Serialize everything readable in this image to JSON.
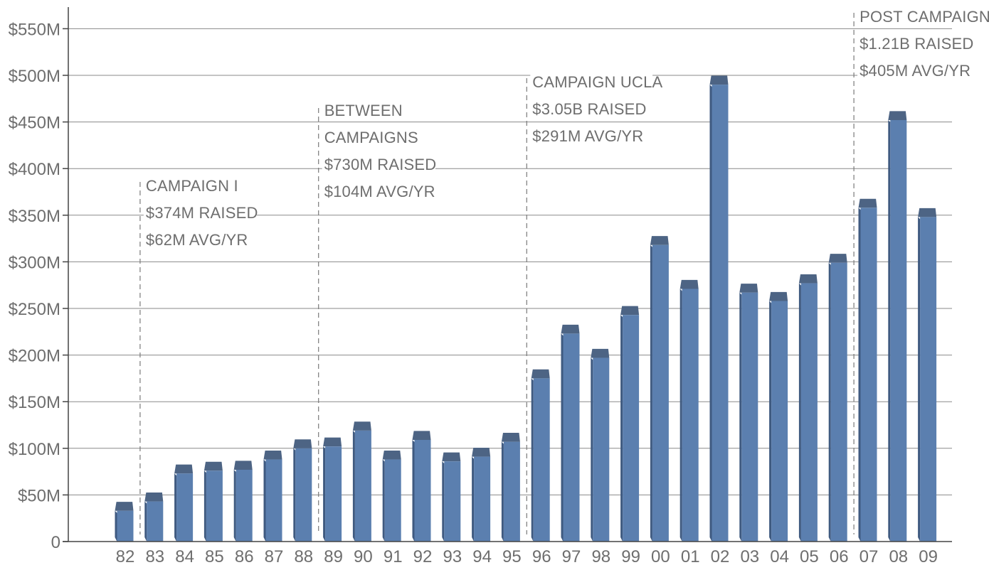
{
  "chart_data": {
    "type": "bar",
    "title": "",
    "xlabel": "",
    "ylabel": "",
    "ylim": [
      0,
      550
    ],
    "grid": true,
    "bar_color": "#5b7faf",
    "bar_top_color": "#4d6484",
    "bar_side_color": "#3f5a80",
    "categories": [
      "82",
      "83",
      "84",
      "85",
      "86",
      "87",
      "88",
      "89",
      "90",
      "91",
      "92",
      "93",
      "94",
      "95",
      "96",
      "97",
      "98",
      "99",
      "00",
      "01",
      "02",
      "03",
      "04",
      "05",
      "06",
      "07",
      "08",
      "09"
    ],
    "values": [
      33,
      43,
      73,
      76,
      77,
      88,
      100,
      102,
      119,
      88,
      109,
      86,
      91,
      107,
      175,
      223,
      197,
      243,
      318,
      271,
      490,
      267,
      258,
      277,
      299,
      358,
      452,
      348
    ],
    "y_ticks": [
      {
        "value": 0,
        "label": "0"
      },
      {
        "value": 50,
        "label": "$50M"
      },
      {
        "value": 100,
        "label": "$100M"
      },
      {
        "value": 150,
        "label": "$150M"
      },
      {
        "value": 200,
        "label": "$200M"
      },
      {
        "value": 250,
        "label": "$250M"
      },
      {
        "value": 300,
        "label": "$300M"
      },
      {
        "value": 350,
        "label": "$350M"
      },
      {
        "value": 400,
        "label": "$400M"
      },
      {
        "value": 450,
        "label": "$450M"
      },
      {
        "value": 500,
        "label": "$500M"
      },
      {
        "value": 550,
        "label": "$550M"
      }
    ],
    "annotations": [
      {
        "boundary_after_category": "82",
        "lines": [
          "CAMPAIGN I",
          "$374M RAISED",
          "$62M AVG/YR"
        ]
      },
      {
        "boundary_after_category": "88",
        "lines": [
          "BETWEEN",
          "CAMPAIGNS",
          "$730M RAISED",
          "$104M AVG/YR"
        ]
      },
      {
        "boundary_after_category": "95",
        "lines": [
          "CAMPAIGN UCLA",
          "$3.05B RAISED",
          "$291M AVG/YR"
        ]
      },
      {
        "boundary_after_category": "06",
        "lines": [
          "POST CAMPAIGN",
          "$1.21B RAISED",
          "$405M AVG/YR"
        ]
      }
    ]
  }
}
